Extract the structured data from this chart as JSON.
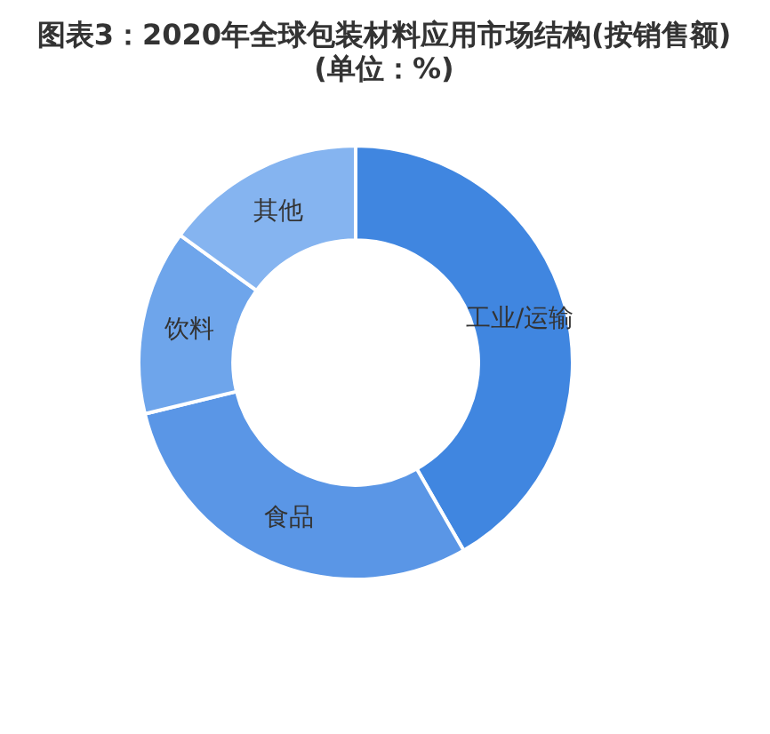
{
  "chart_data": {
    "type": "donut",
    "title": "图表3：2020年全球包装材料应用市场结构(按销售额)",
    "subtitle": "(单位：%)",
    "categories": [
      "工业/运输",
      "食品",
      "饮料",
      "其他"
    ],
    "values": [
      41.7,
      29.5,
      13.8,
      15.0
    ],
    "colors": [
      "#4086e0",
      "#5a96e6",
      "#6ea5eb",
      "#85b4f0"
    ],
    "legend": false
  }
}
